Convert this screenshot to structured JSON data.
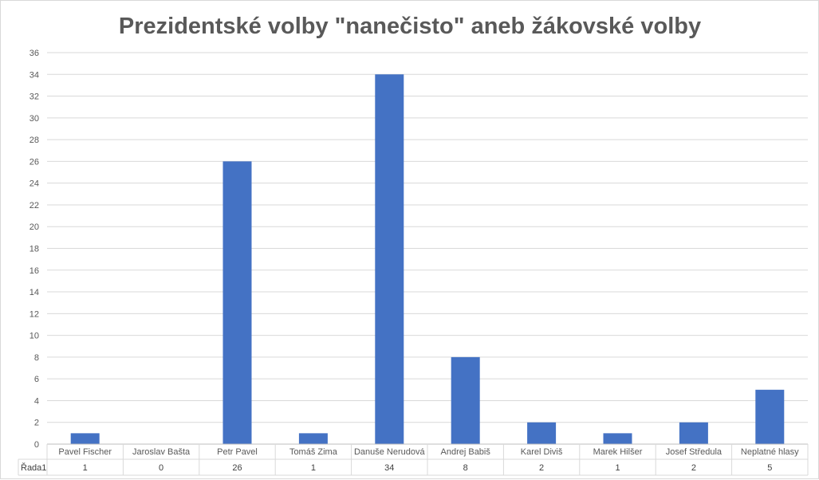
{
  "chart_data": {
    "type": "bar",
    "title": "Prezidentské volby \"nanečisto\" aneb žákovské volby",
    "categories": [
      "Pavel Fischer",
      "Jaroslav Bašta",
      "Petr Pavel",
      "Tomáš Zima",
      "Danuše Nerudová",
      "Andrej Babiš",
      "Karel Diviš",
      "Marek Hilšer",
      "Josef Středula",
      "Neplatné hlasy"
    ],
    "series": [
      {
        "name": "Řada1",
        "values": [
          1,
          0,
          26,
          1,
          34,
          8,
          2,
          1,
          2,
          5
        ]
      }
    ],
    "ylim": [
      0,
      36
    ],
    "yticks": [
      0,
      2,
      4,
      6,
      8,
      10,
      12,
      14,
      16,
      18,
      20,
      22,
      24,
      26,
      28,
      30,
      32,
      34,
      36
    ],
    "grid": true,
    "data_table": true,
    "colors": {
      "bar": "#4472c4",
      "grid": "#d9d9d9",
      "text": "#595959"
    }
  }
}
